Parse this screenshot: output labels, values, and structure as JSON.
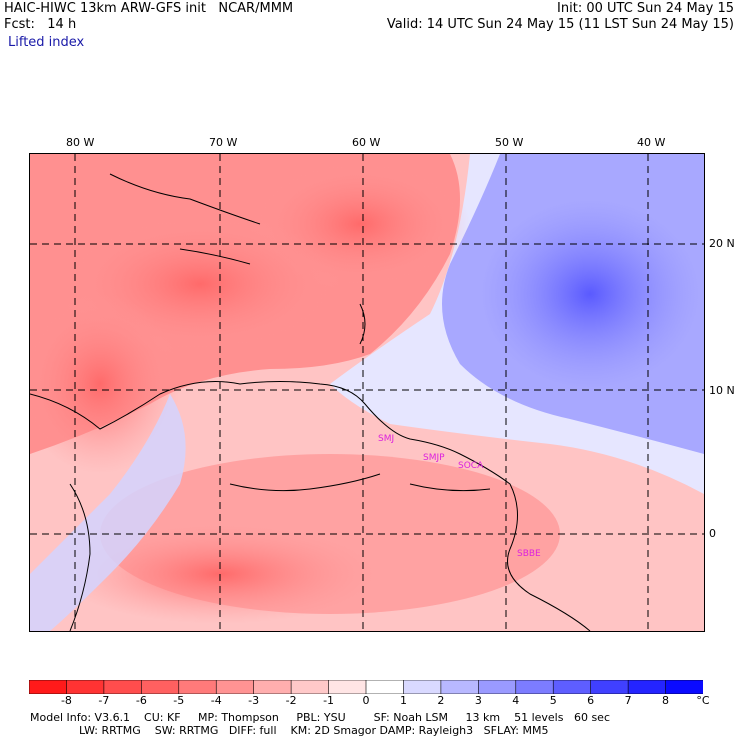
{
  "header": {
    "line1_left": "HAIC-HIWC 13km ARW-GFS init   NCAR/MMM",
    "line1_right": "Init: 00 UTC Sun 24 May 15",
    "line2_left": "Fcst:   14 h",
    "line2_right": "Valid: 14 UTC Sun 24 May 15 (11 LST Sun 24 May 15)",
    "field": "Lifted index"
  },
  "map": {
    "lon_labels": [
      "80 W",
      "70 W",
      "60 W",
      "50 W",
      "40 W"
    ],
    "lat_labels": [
      "20 N",
      "10 N",
      "0"
    ],
    "stations": [
      "SMJ",
      "SMJP",
      "SOCA",
      "SBBE"
    ]
  },
  "colorbar": {
    "unit": "°C",
    "labels": [
      "-8",
      "-7",
      "-6",
      "-5",
      "-4",
      "-3",
      "-2",
      "-1",
      "0",
      "1",
      "2",
      "3",
      "4",
      "5",
      "6",
      "7",
      "8"
    ],
    "colors": [
      "#ff1a1a",
      "#ff3333",
      "#ff4d4d",
      "#ff6060",
      "#ff7a7a",
      "#ff9393",
      "#ffaeae",
      "#ffc9c9",
      "#ffe5e5",
      "#ffffff",
      "#d9d9ff",
      "#b8b8ff",
      "#9a9aff",
      "#7c7cff",
      "#5e5eff",
      "#4040ff",
      "#2424ff",
      "#0a0aff"
    ]
  },
  "footer": {
    "line1": "Model Info: V3.6.1    CU: KF     MP: Thompson     PBL: YSU        SF: Noah LSM     13 km    51 levels   60 sec",
    "line2": "              LW: RRTMG    SW: RRTMG   DIFF: full    KM: 2D Smagor DAMP: Rayleigh3   SFLAY: MM5"
  }
}
